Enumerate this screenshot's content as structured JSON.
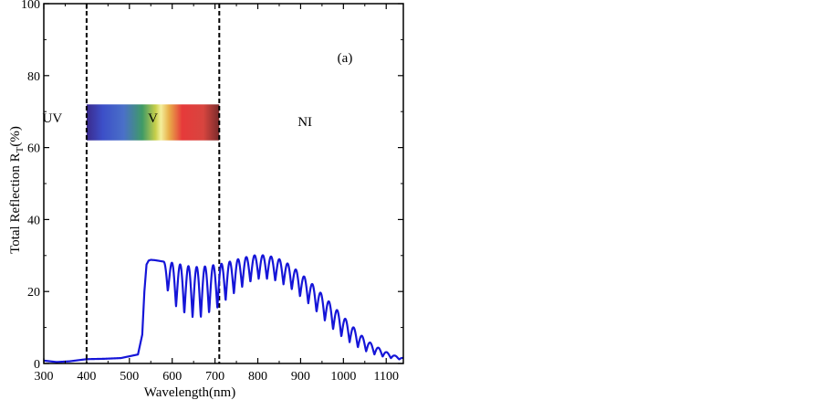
{
  "chart_data": {
    "type": "line",
    "panel_label": "(a)",
    "xlabel": "Wavelength(nm)",
    "ylabel_main": "Total Reflection R",
    "ylabel_sub": "T",
    "ylabel_unit": "(%)",
    "xlim": [
      300,
      1140
    ],
    "ylim": [
      0,
      100
    ],
    "x_ticks": [
      300,
      400,
      500,
      600,
      700,
      800,
      900,
      1000,
      1100
    ],
    "y_ticks": [
      0,
      20,
      40,
      60,
      80,
      100
    ],
    "grid": false,
    "legend": "none",
    "series_color": "#1515d8",
    "region_lines": [
      {
        "x": 400,
        "style": "dashed"
      },
      {
        "x": 710,
        "style": "dashed"
      }
    ],
    "region_labels": [
      {
        "text": "UV",
        "x": 320,
        "y": 67
      },
      {
        "text": "V",
        "x": 555,
        "y": 67
      },
      {
        "text": "NI",
        "x": 910,
        "y": 66
      }
    ],
    "visible_band": {
      "x_start": 400,
      "x_end": 710,
      "y_bottom": 62,
      "y_top": 72
    },
    "series": [
      {
        "envelope": {
          "x": [
            300,
            330,
            360,
            400,
            440,
            480,
            500,
            520,
            530,
            535,
            540,
            545,
            550,
            560,
            580,
            600,
            620,
            640,
            660,
            680,
            700,
            720,
            740,
            760,
            780,
            800,
            820,
            840,
            860,
            880,
            900,
            920,
            940,
            960,
            980,
            1000,
            1020,
            1040,
            1060,
            1080,
            1100,
            1120,
            1140
          ],
          "upper": [
            0.8,
            0.4,
            0.6,
            1.2,
            1.3,
            1.5,
            2.0,
            2.5,
            8.0,
            20.0,
            27.5,
            28.6,
            28.8,
            28.7,
            28.3,
            28.0,
            27.5,
            27.0,
            26.8,
            27.0,
            27.4,
            27.8,
            28.5,
            29.2,
            29.8,
            30.2,
            30.0,
            29.5,
            28.5,
            27.0,
            25.0,
            23.0,
            20.5,
            18.0,
            15.5,
            13.0,
            10.5,
            8.0,
            6.0,
            4.5,
            3.2,
            2.2,
            1.5
          ],
          "lower": [
            0.8,
            0.4,
            0.6,
            1.2,
            1.3,
            1.5,
            2.0,
            2.5,
            8.0,
            20.0,
            27.5,
            28.6,
            28.8,
            28.5,
            23.0,
            17.0,
            14.5,
            13.0,
            12.5,
            13.5,
            15.0,
            17.0,
            19.0,
            21.0,
            22.5,
            23.5,
            23.5,
            23.0,
            22.0,
            20.5,
            18.5,
            16.5,
            14.0,
            11.5,
            9.0,
            7.0,
            5.5,
            4.0,
            3.0,
            2.2,
            1.7,
            1.3,
            1.0
          ]
        },
        "fringes": {
          "x_start": 580,
          "x_end": 1140,
          "count": 29
        }
      }
    ]
  }
}
